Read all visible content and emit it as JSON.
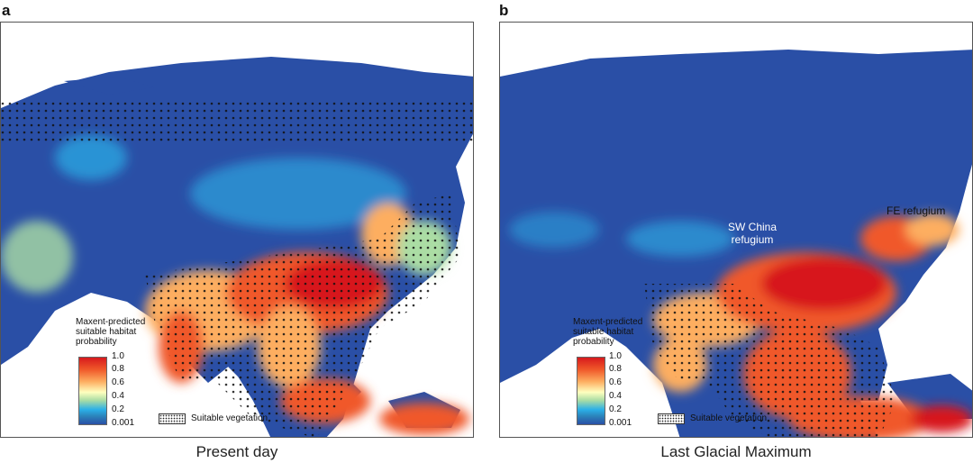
{
  "panel_a": {
    "letter": "a",
    "caption": "Present day",
    "legend_title_lines": [
      "Maxent-predicted",
      "suitable habitat",
      "probability"
    ],
    "ticks": [
      "1.0",
      "0.8",
      "0.6",
      "0.4",
      "0.2",
      "0.001"
    ],
    "vegetation_label": "Suitable vegetation"
  },
  "panel_b": {
    "letter": "b",
    "caption": "Last Glacial Maximum",
    "legend_title_lines": [
      "Maxent-predicted",
      "suitable habitat",
      "probability"
    ],
    "ticks": [
      "1.0",
      "0.8",
      "0.6",
      "0.4",
      "0.2",
      "0.001"
    ],
    "vegetation_label": "Suitable vegetation",
    "annotations": {
      "sw_china_line1": "SW China",
      "sw_china_line2": "refugium",
      "fe_refugium": "FE refugium"
    }
  },
  "colors": {
    "ocean": "#ffffff",
    "low": "#2a4fa6",
    "mid_low": "#2bb0e8",
    "mid": "#ffffbf",
    "mid_high": "#fdae61",
    "high": "#d7191c"
  }
}
